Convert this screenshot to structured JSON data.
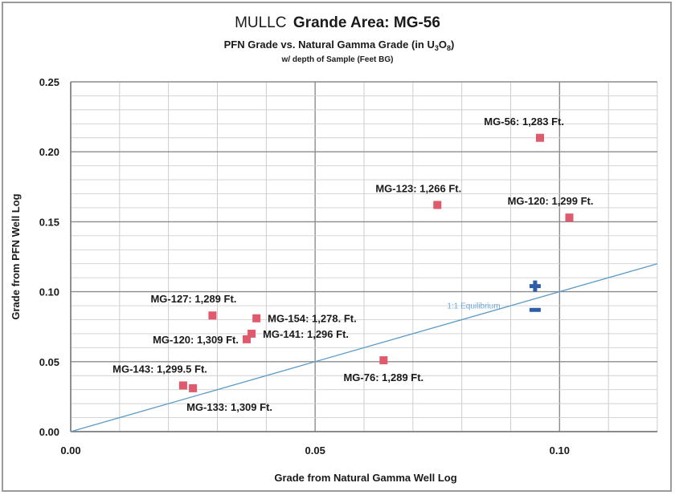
{
  "title": {
    "prefix": "MULLC",
    "main": "Grande Area: MG-56",
    "subtitle_pre": "PFN Grade vs. Natural Gamma Grade (in U",
    "subtitle_sub1": "3",
    "subtitle_mid": "O",
    "subtitle_sub2": "8",
    "subtitle_post": ")",
    "subsubtitle": "w/ depth of Sample (Feet BG)"
  },
  "chart_data": {
    "type": "scatter",
    "xlabel": "Grade from Natural Gamma Well Log",
    "ylabel": "Grade from  PFN Well Log",
    "xlim": [
      0,
      0.12
    ],
    "ylim": [
      0,
      0.25
    ],
    "x_ticks": [
      "0.00",
      "0.05",
      "0.10"
    ],
    "x_tick_values": [
      0,
      0.05,
      0.1
    ],
    "y_ticks": [
      "0.00",
      "0.05",
      "0.10",
      "0.15",
      "0.20",
      "0.25"
    ],
    "y_tick_values": [
      0,
      0.05,
      0.1,
      0.15,
      0.2,
      0.25
    ],
    "grid": "on",
    "points": [
      {
        "label": "MG-56: 1,283 Ft.",
        "x": 0.096,
        "y": 0.21,
        "label_side": "above-left"
      },
      {
        "label": "MG-123: 1,266 Ft.",
        "x": 0.075,
        "y": 0.162,
        "label_side": "above-left"
      },
      {
        "label": "MG-120: 1,299 Ft.",
        "x": 0.102,
        "y": 0.153,
        "label_side": "above-left"
      },
      {
        "label": "MG-127: 1,289 Ft.",
        "x": 0.029,
        "y": 0.083,
        "label_side": "above-left"
      },
      {
        "label": "MG-154: 1,278. Ft.",
        "x": 0.038,
        "y": 0.081,
        "label_side": "right"
      },
      {
        "label": "MG-141: 1,296 Ft.",
        "x": 0.037,
        "y": 0.07,
        "label_side": "right"
      },
      {
        "label": "MG-120: 1,309 Ft.",
        "x": 0.036,
        "y": 0.066,
        "label_side": "left"
      },
      {
        "label": "MG-76: 1,289 Ft.",
        "x": 0.064,
        "y": 0.051,
        "label_side": "below"
      },
      {
        "label": "MG-143: 1,299.5 Ft.",
        "x": 0.023,
        "y": 0.033,
        "label_side": "above-left"
      },
      {
        "label": "MG-133: 1,309 Ft.",
        "x": 0.025,
        "y": 0.031,
        "label_side": "below-right"
      }
    ],
    "equilibrium_line": {
      "label": "1:1 Equilibrium",
      "x": [
        0,
        0.12
      ],
      "y": [
        0,
        0.12
      ]
    },
    "markers": [
      {
        "symbol": "+",
        "x": 0.095,
        "y": 0.104
      },
      {
        "symbol": "-",
        "x": 0.095,
        "y": 0.087
      }
    ],
    "point_color": "#e05a6e",
    "line_color": "#5b9bc8",
    "marker_color": "#2e5ea8"
  }
}
